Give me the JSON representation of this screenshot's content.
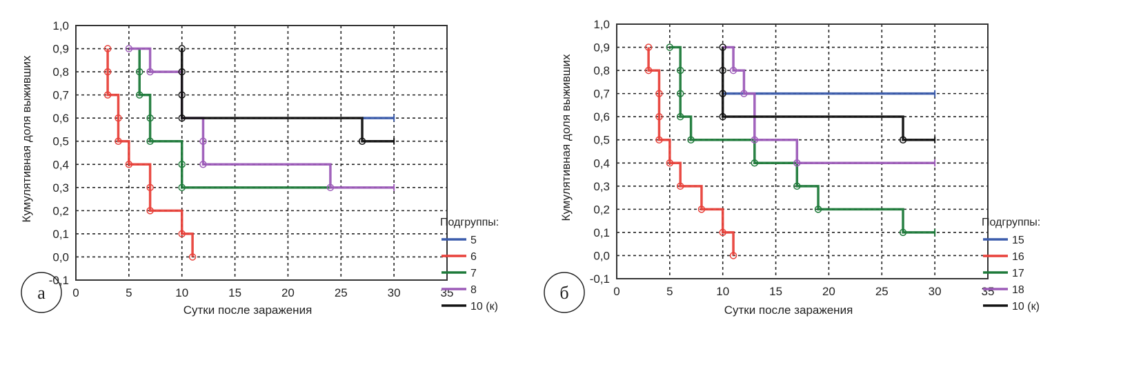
{
  "chart_data": [
    {
      "type": "line",
      "subtype": "kaplan-meier-step",
      "panel_label": "а",
      "title": "",
      "xlabel": "Сутки после заражения",
      "ylabel": "Кумулятивная доля выживших",
      "xlim": [
        0,
        35
      ],
      "ylim": [
        -0.1,
        1.0
      ],
      "xticks": [
        "0",
        "5",
        "10",
        "15",
        "20",
        "25",
        "30",
        "35"
      ],
      "yticks": [
        "1,0",
        "0,9",
        "0,8",
        "0,7",
        "0,6",
        "0,5",
        "0,4",
        "0,3",
        "0,2",
        "0,1",
        "0,0",
        "-0,1"
      ],
      "grid": true,
      "legend_title": "Подгруппы:",
      "legend_position": "right-bottom",
      "series": [
        {
          "name": "5",
          "color": "#3a5bab",
          "x": [
            27,
            30
          ],
          "y": [
            0.6,
            0.6
          ],
          "markers": []
        },
        {
          "name": "6",
          "color": "#e8413a",
          "x": [
            3,
            3,
            3,
            4,
            4,
            5,
            5,
            7,
            7,
            10,
            10,
            11,
            11
          ],
          "y": [
            0.9,
            0.8,
            0.7,
            0.7,
            0.5,
            0.5,
            0.4,
            0.4,
            0.2,
            0.2,
            0.1,
            0.1,
            0.0
          ],
          "markers": [
            [
              3,
              0.9
            ],
            [
              3,
              0.8
            ],
            [
              3,
              0.7
            ],
            [
              4,
              0.6
            ],
            [
              4,
              0.5
            ],
            [
              5,
              0.4
            ],
            [
              7,
              0.3
            ],
            [
              7,
              0.2
            ],
            [
              10,
              0.1
            ],
            [
              11,
              0.0
            ]
          ]
        },
        {
          "name": "7",
          "color": "#1e7a3a",
          "x": [
            6,
            6,
            6,
            7,
            7,
            10,
            10,
            24
          ],
          "y": [
            0.9,
            0.8,
            0.7,
            0.7,
            0.5,
            0.5,
            0.3,
            0.3
          ],
          "markers": [
            [
              6,
              0.8
            ],
            [
              6,
              0.7
            ],
            [
              7,
              0.6
            ],
            [
              7,
              0.5
            ],
            [
              10,
              0.4
            ],
            [
              10,
              0.3
            ]
          ]
        },
        {
          "name": "8",
          "color": "#9c5bb8",
          "x": [
            5,
            7,
            7,
            10,
            10,
            12,
            12,
            24,
            24,
            30
          ],
          "y": [
            0.9,
            0.9,
            0.8,
            0.8,
            0.6,
            0.6,
            0.4,
            0.4,
            0.3,
            0.3
          ],
          "markers": [
            [
              5,
              0.9
            ],
            [
              7,
              0.8
            ],
            [
              12,
              0.5
            ],
            [
              12,
              0.4
            ],
            [
              24,
              0.3
            ]
          ]
        },
        {
          "name": "10 (к)",
          "color": "#111111",
          "x": [
            10,
            10,
            27,
            27,
            30
          ],
          "y": [
            0.9,
            0.6,
            0.6,
            0.5,
            0.5
          ],
          "markers": [
            [
              10,
              0.9
            ],
            [
              10,
              0.8
            ],
            [
              10,
              0.7
            ],
            [
              10,
              0.6
            ],
            [
              27,
              0.5
            ]
          ]
        }
      ]
    },
    {
      "type": "line",
      "subtype": "kaplan-meier-step",
      "panel_label": "б",
      "title": "",
      "xlabel": "Сутки после заражения",
      "ylabel": "Кумулятивная доля выживших",
      "xlim": [
        0,
        35
      ],
      "ylim": [
        -0.1,
        1.0
      ],
      "xticks": [
        "0",
        "5",
        "10",
        "15",
        "20",
        "25",
        "30",
        "35"
      ],
      "yticks": [
        "1,0",
        "0,9",
        "0,8",
        "0,7",
        "0,6",
        "0,5",
        "0,4",
        "0,3",
        "0,2",
        "0,1",
        "0,0",
        "-0,1"
      ],
      "grid": true,
      "legend_title": "Подгруппы:",
      "legend_position": "right-bottom",
      "series": [
        {
          "name": "15",
          "color": "#3a5bab",
          "x": [
            10,
            30
          ],
          "y": [
            0.7,
            0.7
          ],
          "markers": []
        },
        {
          "name": "16",
          "color": "#e8413a",
          "x": [
            3,
            3,
            4,
            4,
            5,
            5,
            6,
            6,
            8,
            8,
            10,
            10,
            11,
            11
          ],
          "y": [
            0.9,
            0.8,
            0.8,
            0.5,
            0.5,
            0.4,
            0.4,
            0.3,
            0.3,
            0.2,
            0.2,
            0.1,
            0.1,
            0.0
          ],
          "markers": [
            [
              3,
              0.9
            ],
            [
              3,
              0.8
            ],
            [
              4,
              0.7
            ],
            [
              4,
              0.6
            ],
            [
              4,
              0.5
            ],
            [
              5,
              0.4
            ],
            [
              6,
              0.3
            ],
            [
              8,
              0.2
            ],
            [
              10,
              0.1
            ],
            [
              11,
              0.0
            ]
          ]
        },
        {
          "name": "17",
          "color": "#1e7a3a",
          "x": [
            5,
            6,
            6,
            7,
            7,
            13,
            13,
            17,
            17,
            19,
            19,
            27,
            27,
            30
          ],
          "y": [
            0.9,
            0.9,
            0.6,
            0.6,
            0.5,
            0.5,
            0.4,
            0.4,
            0.3,
            0.3,
            0.2,
            0.2,
            0.1,
            0.1
          ],
          "markers": [
            [
              5,
              0.9
            ],
            [
              6,
              0.8
            ],
            [
              6,
              0.7
            ],
            [
              6,
              0.6
            ],
            [
              7,
              0.5
            ],
            [
              13,
              0.4
            ],
            [
              17,
              0.3
            ],
            [
              19,
              0.2
            ],
            [
              27,
              0.1
            ]
          ]
        },
        {
          "name": "18",
          "color": "#9c5bb8",
          "x": [
            10,
            11,
            11,
            12,
            12,
            13,
            13,
            17,
            17,
            30
          ],
          "y": [
            0.9,
            0.9,
            0.8,
            0.8,
            0.7,
            0.7,
            0.5,
            0.5,
            0.4,
            0.4
          ],
          "markers": [
            [
              11,
              0.8
            ],
            [
              12,
              0.7
            ],
            [
              13,
              0.5
            ],
            [
              17,
              0.4
            ]
          ]
        },
        {
          "name": "10 (к)",
          "color": "#111111",
          "x": [
            10,
            10,
            27,
            27,
            30
          ],
          "y": [
            0.9,
            0.6,
            0.6,
            0.5,
            0.5
          ],
          "markers": [
            [
              10,
              0.9
            ],
            [
              10,
              0.8
            ],
            [
              10,
              0.7
            ],
            [
              10,
              0.6
            ],
            [
              27,
              0.5
            ]
          ]
        }
      ]
    }
  ]
}
